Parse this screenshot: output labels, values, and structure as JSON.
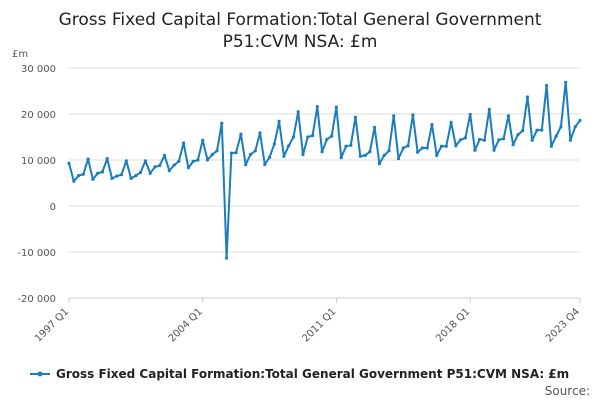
{
  "chart_data": {
    "type": "line",
    "title_line1": "Gross Fixed Capital Formation:Total General Government",
    "title_line2": "P51:CVM NSA: £m",
    "unit_label": "£m",
    "x_start": "1997 Q1",
    "x_end": "2023 Q4",
    "xtick_labels": [
      "1997 Q1",
      "2004 Q1",
      "2011 Q1",
      "2018 Q1",
      "2023 Q4"
    ],
    "ytick_labels": [
      "30 000",
      "20 000",
      "10 000",
      "0",
      "-10 000",
      "-20 000"
    ],
    "ylim": [
      -20000,
      30000
    ],
    "yticks": [
      30000,
      20000,
      10000,
      0,
      -10000,
      -20000
    ],
    "grid": true,
    "legend_position": "bottom",
    "series": [
      {
        "name": "Gross Fixed Capital Formation:Total General Government P51:CVM NSA: £m",
        "color": "#1a7dbd",
        "values": [
          9300,
          5400,
          6600,
          6900,
          10200,
          5800,
          7100,
          7400,
          10300,
          6000,
          6500,
          6800,
          9800,
          6000,
          6600,
          7300,
          9800,
          7100,
          8500,
          8800,
          11000,
          7700,
          8900,
          9700,
          13700,
          8300,
          9700,
          10000,
          14300,
          10000,
          11200,
          12000,
          18000,
          -11300,
          11500,
          11600,
          15600,
          9000,
          11200,
          12000,
          15900,
          9000,
          10600,
          13500,
          18400,
          10800,
          13100,
          15000,
          20500,
          11200,
          15000,
          15300,
          21600,
          11800,
          14500,
          15200,
          21500,
          10500,
          13000,
          13200,
          19300,
          10800,
          11000,
          11800,
          17100,
          9200,
          11000,
          12000,
          19600,
          10300,
          12600,
          13100,
          19800,
          11700,
          12600,
          12600,
          17700,
          11000,
          13000,
          13000,
          18200,
          13100,
          14400,
          14800,
          19900,
          12100,
          14500,
          14300,
          21000,
          12100,
          14400,
          14600,
          19600,
          13300,
          15500,
          16400,
          23700,
          14300,
          16500,
          16500,
          26200,
          13000,
          15200,
          17200,
          26900,
          14300,
          17200,
          18600
        ]
      }
    ],
    "source_label": "Source:"
  }
}
